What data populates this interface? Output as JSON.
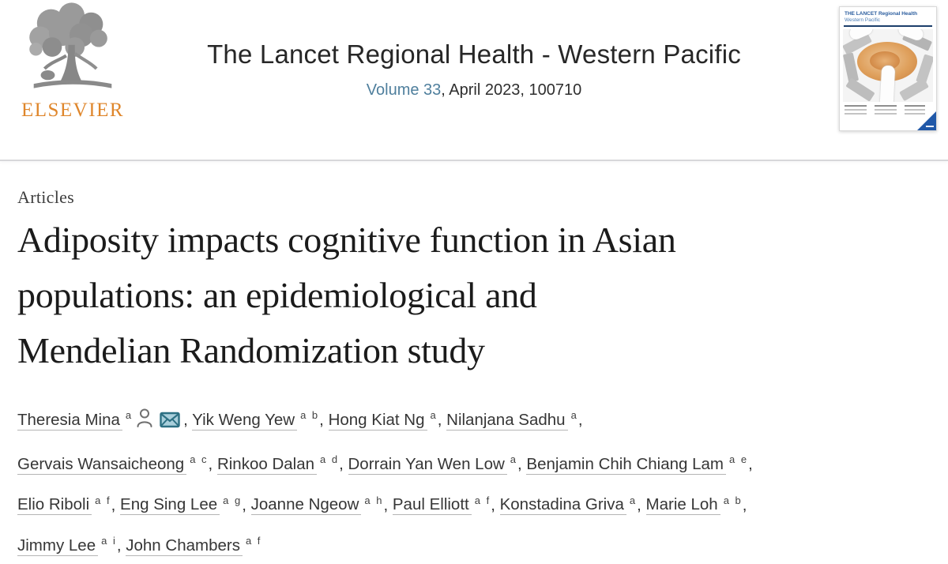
{
  "header": {
    "publisher": "ELSEVIER",
    "journal_title": "The Lancet Regional Health - Western Pacific",
    "volume_link": "Volume 33",
    "issue_info": ", April 2023, 100710",
    "cover": {
      "title_line1": "THE LANCET Regional Health",
      "title_line2": "Western Pacific"
    }
  },
  "article": {
    "section_label": "Articles",
    "title_lines": [
      "Adiposity impacts cognitive function in Asian",
      "populations: an epidemiological and",
      "Mendelian Randomization study"
    ]
  },
  "authors": [
    {
      "name": "Theresia Mina",
      "sup": "a",
      "icons": [
        "person-icon",
        "envelope-icon"
      ]
    },
    {
      "name": "Yik Weng Yew",
      "sup": "a b"
    },
    {
      "name": "Hong Kiat Ng",
      "sup": "a"
    },
    {
      "name": "Nilanjana Sadhu",
      "sup": "a",
      "break_after": true
    },
    {
      "name": "Gervais Wansaicheong",
      "sup": "a c"
    },
    {
      "name": "Rinkoo Dalan",
      "sup": "a d"
    },
    {
      "name": "Dorrain Yan Wen Low",
      "sup": "a"
    },
    {
      "name": "Benjamin Chih Chiang Lam",
      "sup": "a e",
      "break_after": true
    },
    {
      "name": "Elio Riboli",
      "sup": "a f"
    },
    {
      "name": "Eng Sing Lee",
      "sup": "a g"
    },
    {
      "name": "Joanne Ngeow",
      "sup": "a h"
    },
    {
      "name": "Paul Elliott",
      "sup": "a f"
    },
    {
      "name": "Konstadina Griva",
      "sup": "a"
    },
    {
      "name": "Marie Loh",
      "sup": "a b",
      "break_after": true
    },
    {
      "name": "Jimmy Lee",
      "sup": "a i"
    },
    {
      "name": "John Chambers",
      "sup": "a f"
    }
  ],
  "colors": {
    "elsevier_orange": "#df862b",
    "volume_link_blue": "#4f7f9d",
    "envelope_teal": "#2d7083",
    "cover_blue": "#2b5d9e",
    "corner_blue": "#2058a8"
  }
}
